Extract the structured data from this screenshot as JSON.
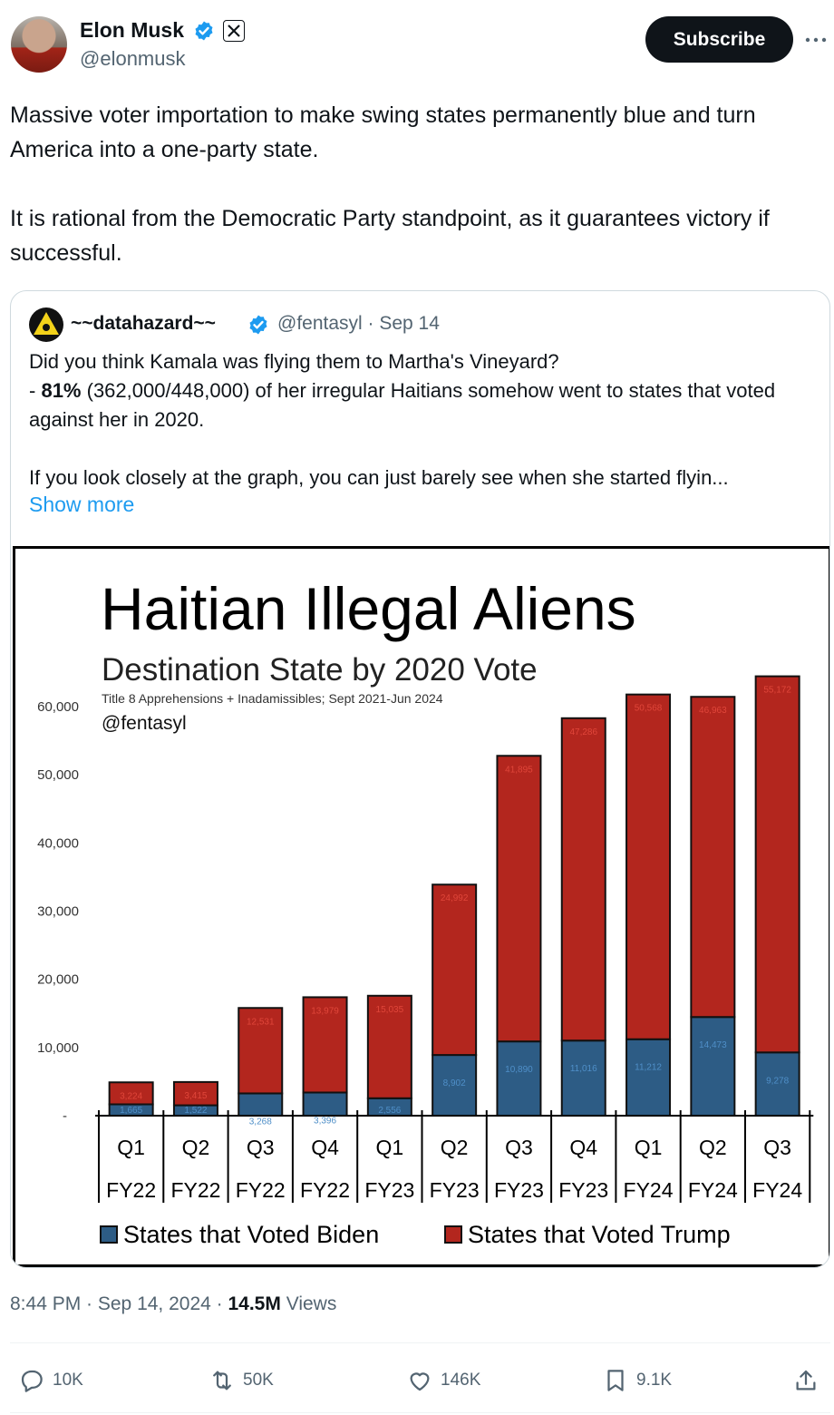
{
  "author": {
    "name": "Elon Musk",
    "handle": "@elonmusk"
  },
  "subscribe_label": "Subscribe",
  "tweet": {
    "paragraphs": [
      "Massive voter importation to make swing states permanently blue and turn America into a one-party state.",
      "It is rational from the Democratic Party standpoint, as it guarantees victory if successful."
    ]
  },
  "quote": {
    "name": "~~datahazard~~",
    "handle_date": "@fentasyl · Sep 14",
    "line1": "Did you think Kamala was flying them to Martha's Vineyard?",
    "line2_prefix": "- ",
    "line2_bold": "81%",
    "line2_rest": " (362,000/448,000) of her irregular Haitians somehow went to states that voted against her in 2020.",
    "line3": "If you look closely at the graph, you can just barely see when she started flyin...",
    "show_more": "Show more"
  },
  "chart_data": {
    "type": "bar",
    "stacked": true,
    "title": "Haitian Illegal Aliens",
    "subtitle": "Destination State by 2020 Vote",
    "note": "Title 8 Apprehensions + Inadamissibles; Sept 2021-Jun 2024",
    "credit": "@fentasyl",
    "categories": [
      [
        "Q1",
        "FY22"
      ],
      [
        "Q2",
        "FY22"
      ],
      [
        "Q3",
        "FY22"
      ],
      [
        "Q4",
        "FY22"
      ],
      [
        "Q1",
        "FY23"
      ],
      [
        "Q2",
        "FY23"
      ],
      [
        "Q3",
        "FY23"
      ],
      [
        "Q4",
        "FY23"
      ],
      [
        "Q1",
        "FY24"
      ],
      [
        "Q2",
        "FY24"
      ],
      [
        "Q3",
        "FY24"
      ]
    ],
    "series": [
      {
        "name": "States that Voted Biden",
        "color": "#2d5c85",
        "values": [
          1665,
          1522,
          3268,
          3396,
          2556,
          8902,
          10890,
          11016,
          11212,
          14473,
          9278
        ],
        "labels": [
          "1,665",
          "1,522",
          "3,268",
          "3,396",
          "2,556",
          "8,902",
          "10,890",
          "11,016",
          "11,212",
          "14,473",
          "9,278"
        ]
      },
      {
        "name": "States that Voted Trump",
        "color": "#b3261e",
        "values": [
          3224,
          3415,
          12531,
          13979,
          15035,
          24992,
          41895,
          47286,
          50568,
          46963,
          55172
        ],
        "labels": [
          "3,224",
          "3,415",
          "12,531",
          "13,979",
          "15,035",
          "24,992",
          "41,895",
          "47,286",
          "50,568",
          "46,963",
          "55,172"
        ]
      }
    ],
    "y_ticks": [
      0,
      10000,
      20000,
      30000,
      40000,
      50000,
      60000
    ],
    "y_tick_labels": [
      "-",
      "10,000",
      "20,000",
      "30,000",
      "40,000",
      "50,000",
      "60,000"
    ],
    "ylim": [
      0,
      68000
    ],
    "grid": false,
    "legend_position": "bottom"
  },
  "meta": {
    "time": "8:44 PM · Sep 14, 2024 · ",
    "views_count": "14.5M",
    "views_label": " Views"
  },
  "actions": {
    "replies": "10K",
    "reposts": "50K",
    "likes": "146K",
    "bookmarks": "9.1K"
  },
  "colors": {
    "accent": "#1d9bf0",
    "verified": "#1d9bf0",
    "text": "#0f1419",
    "muted": "#536471"
  },
  "icons": [
    "verified-badge-icon",
    "x-logo-icon",
    "more-icon",
    "reply-icon",
    "repost-icon",
    "like-icon",
    "bookmark-icon",
    "share-icon"
  ]
}
